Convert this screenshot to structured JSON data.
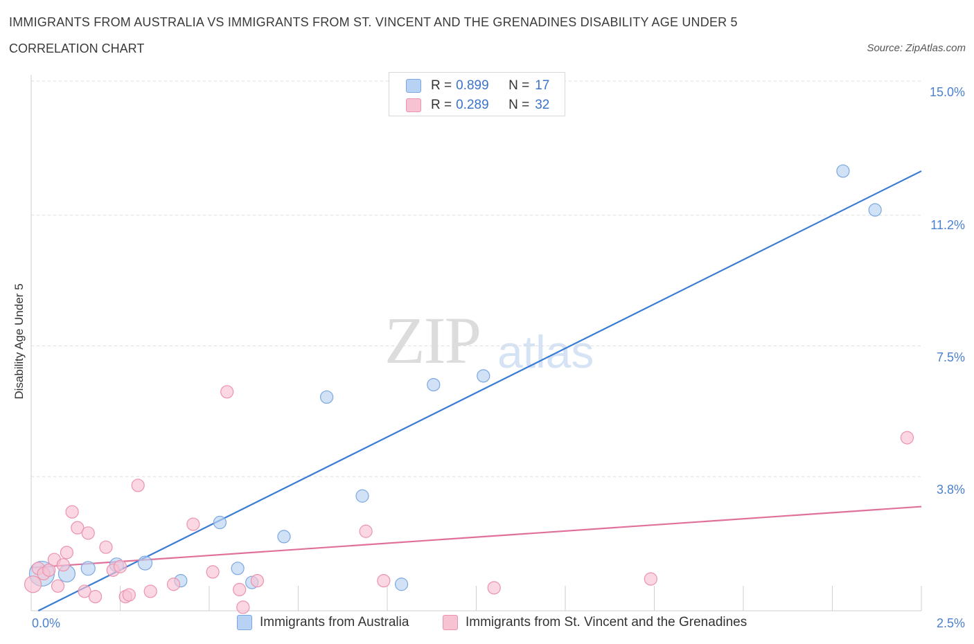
{
  "header": {
    "title": "IMMIGRANTS FROM AUSTRALIA VS IMMIGRANTS FROM ST. VINCENT AND THE GRENADINES DISABILITY AGE UNDER 5",
    "subtitle": "CORRELATION CHART",
    "source": "Source: ZipAtlas.com"
  },
  "watermark": {
    "zip": "ZIP",
    "atlas": "atlas"
  },
  "legend": {
    "rows": [
      {
        "r_label": "R = ",
        "r_value": "0.899",
        "n_label": "N = ",
        "n_value": "17"
      },
      {
        "r_label": "R = ",
        "r_value": "0.289",
        "n_label": "N = ",
        "n_value": "32"
      }
    ]
  },
  "colors": {
    "blue_fill": "#b8d2f3",
    "blue_stroke": "#7aa7e0",
    "blue_line": "#3a7bd5",
    "pink_fill": "#f7c2d2",
    "pink_stroke": "#eb92ad",
    "pink_line": "#e0709a",
    "grid": "#dddddd",
    "tick_text": "#4a80d0"
  },
  "chart_data": {
    "type": "scatter",
    "title": "IMMIGRANTS FROM AUSTRALIA VS IMMIGRANTS FROM ST. VINCENT AND THE GRENADINES DISABILITY AGE UNDER 5",
    "ylabel": "Disability Age Under 5",
    "xlabel": "",
    "xlim": [
      0,
      2.5
    ],
    "ylim": [
      0,
      15
    ],
    "x_tick_labels": [
      "0.0%",
      "2.5%"
    ],
    "y_ticks": [
      3.8,
      7.5,
      11.2,
      15.0
    ],
    "y_tick_labels": [
      "3.8%",
      "7.5%",
      "11.2%",
      "15.0%"
    ],
    "grid": "horizontal dashed",
    "legend_position": "top-center",
    "series": [
      {
        "name": "Immigrants from Australia",
        "color": "#b8d2f3",
        "points": [
          [
            0.03,
            1.05,
            18
          ],
          [
            0.1,
            1.05,
            12
          ],
          [
            0.16,
            1.2,
            10
          ],
          [
            0.24,
            1.3,
            10
          ],
          [
            0.32,
            1.35,
            10
          ],
          [
            0.42,
            0.85,
            9
          ],
          [
            0.53,
            2.5,
            9
          ],
          [
            0.58,
            1.2,
            9
          ],
          [
            0.62,
            0.8,
            9
          ],
          [
            0.71,
            2.1,
            9
          ],
          [
            0.83,
            6.05,
            9
          ],
          [
            0.93,
            3.25,
            9
          ],
          [
            1.04,
            0.75,
            9
          ],
          [
            1.13,
            6.4,
            9
          ],
          [
            1.27,
            6.65,
            9
          ],
          [
            2.28,
            12.45,
            9
          ],
          [
            2.37,
            11.35,
            9
          ]
        ],
        "trend": {
          "x": [
            0.02,
            2.5
          ],
          "y": [
            0.0,
            12.45
          ]
        }
      },
      {
        "name": "Immigrants from St. Vincent and the Grenadines",
        "color": "#f7c2d2",
        "points": [
          [
            0.005,
            0.75,
            12
          ],
          [
            0.02,
            1.2,
            9
          ],
          [
            0.035,
            1.05,
            9
          ],
          [
            0.05,
            1.15,
            9
          ],
          [
            0.065,
            1.45,
            9
          ],
          [
            0.075,
            0.7,
            9
          ],
          [
            0.09,
            1.3,
            9
          ],
          [
            0.1,
            1.65,
            9
          ],
          [
            0.115,
            2.8,
            9
          ],
          [
            0.13,
            2.35,
            9
          ],
          [
            0.15,
            0.55,
            9
          ],
          [
            0.16,
            2.2,
            9
          ],
          [
            0.18,
            0.4,
            9
          ],
          [
            0.21,
            1.8,
            9
          ],
          [
            0.23,
            1.15,
            9
          ],
          [
            0.25,
            1.25,
            9
          ],
          [
            0.265,
            0.4,
            9
          ],
          [
            0.275,
            0.45,
            9
          ],
          [
            0.3,
            3.55,
            9
          ],
          [
            0.335,
            0.55,
            9
          ],
          [
            0.4,
            0.75,
            9
          ],
          [
            0.455,
            2.45,
            9
          ],
          [
            0.51,
            1.1,
            9
          ],
          [
            0.55,
            6.2,
            9
          ],
          [
            0.585,
            0.6,
            9
          ],
          [
            0.595,
            0.1,
            9
          ],
          [
            0.635,
            0.85,
            9
          ],
          [
            0.94,
            2.25,
            9
          ],
          [
            0.99,
            0.85,
            9
          ],
          [
            1.3,
            0.65,
            9
          ],
          [
            1.74,
            0.9,
            9
          ],
          [
            2.46,
            4.9,
            9
          ]
        ],
        "trend": {
          "x": [
            0.0,
            2.5
          ],
          "y": [
            1.22,
            2.95
          ]
        }
      }
    ]
  },
  "bottom_legend": {
    "items": [
      {
        "label": "Immigrants from Australia"
      },
      {
        "label": "Immigrants from St. Vincent and the Grenadines"
      }
    ]
  }
}
